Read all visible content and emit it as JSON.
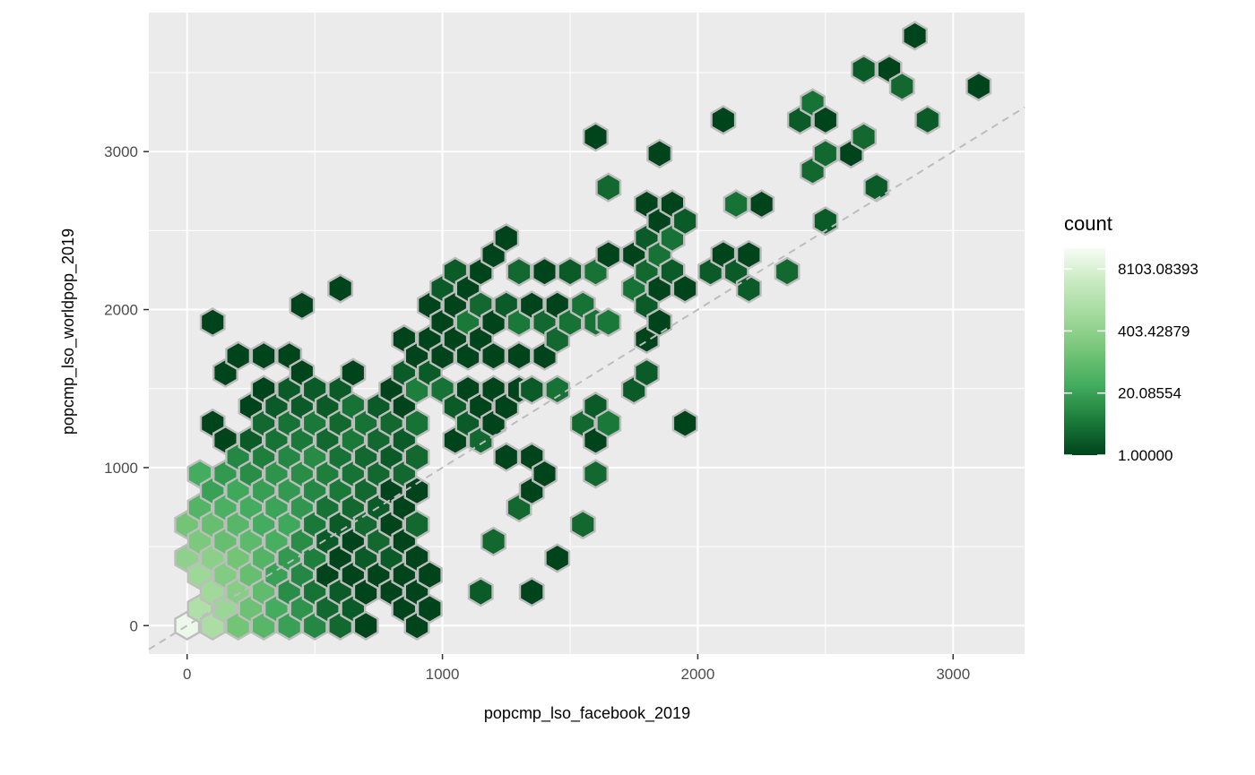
{
  "chart_data": {
    "type": "hexbin",
    "title": "",
    "xlabel": "popcmp_lso_facebook_2019",
    "ylabel": "popcmp_lso_worldpop_2019",
    "xlim": [
      -150,
      3280
    ],
    "ylim": [
      -180,
      3880
    ],
    "x_ticks": [
      0,
      1000,
      2000,
      3000
    ],
    "y_ticks": [
      0,
      1000,
      2000,
      3000
    ],
    "grid": true,
    "reference_line": {
      "type": "identity",
      "style": "dashed",
      "color": "#bdbdbd"
    },
    "hex_width_data": 100,
    "hex_outline_color": "#bdbdbd",
    "legend": {
      "title": "count",
      "placement": "right",
      "scale": "log",
      "labels": [
        "8103.08393",
        "403.42879",
        "20.08554",
        "1.00000"
      ],
      "label_values": [
        8103.08393,
        403.42879,
        20.08554,
        1.0
      ],
      "min": 1,
      "max": 22026,
      "colors": [
        "#00441b",
        "#1b7b3a",
        "#41ab5d",
        "#74c476",
        "#a1d99b",
        "#c7e9c0",
        "#f7fcf5"
      ]
    },
    "columns": [
      {
        "x": 0,
        "rows": [
          [
            0,
            15000
          ],
          [
            427,
            400
          ],
          [
            638,
            150
          ]
        ]
      },
      {
        "x": 50,
        "rows": [
          [
            107,
            1500
          ],
          [
            320,
            700
          ],
          [
            533,
            200
          ],
          [
            747,
            50
          ],
          [
            960,
            30
          ]
        ]
      },
      {
        "x": 100,
        "rows": [
          [
            0,
            1200
          ],
          [
            213,
            800
          ],
          [
            427,
            350
          ],
          [
            640,
            100
          ],
          [
            853,
            20
          ],
          [
            1280,
            1
          ],
          [
            1920,
            1
          ]
        ]
      },
      {
        "x": 150,
        "rows": [
          [
            107,
            600
          ],
          [
            320,
            250
          ],
          [
            533,
            100
          ],
          [
            747,
            40
          ],
          [
            960,
            15
          ],
          [
            1173,
            1
          ],
          [
            1600,
            1
          ]
        ]
      },
      {
        "x": 200,
        "rows": [
          [
            0,
            150
          ],
          [
            213,
            300
          ],
          [
            427,
            150
          ],
          [
            640,
            60
          ],
          [
            853,
            25
          ],
          [
            1067,
            8
          ],
          [
            1707,
            1
          ]
        ]
      },
      {
        "x": 250,
        "rows": [
          [
            107,
            120
          ],
          [
            320,
            100
          ],
          [
            533,
            70
          ],
          [
            747,
            30
          ],
          [
            960,
            10
          ],
          [
            1173,
            2
          ],
          [
            1387,
            1
          ]
        ]
      },
      {
        "x": 300,
        "rows": [
          [
            0,
            60
          ],
          [
            213,
            80
          ],
          [
            427,
            50
          ],
          [
            640,
            30
          ],
          [
            853,
            18
          ],
          [
            1067,
            6
          ],
          [
            1280,
            3
          ],
          [
            1493,
            1
          ],
          [
            1707,
            1
          ]
        ]
      },
      {
        "x": 350,
        "rows": [
          [
            107,
            30
          ],
          [
            320,
            20
          ],
          [
            533,
            35
          ],
          [
            747,
            22
          ],
          [
            960,
            12
          ],
          [
            1173,
            4
          ],
          [
            1387,
            2
          ]
        ]
      },
      {
        "x": 400,
        "rows": [
          [
            0,
            20
          ],
          [
            213,
            10
          ],
          [
            427,
            15
          ],
          [
            640,
            25
          ],
          [
            853,
            15
          ],
          [
            1067,
            8
          ],
          [
            1280,
            4
          ],
          [
            1493,
            2
          ],
          [
            1707,
            1
          ]
        ]
      },
      {
        "x": 450,
        "rows": [
          [
            107,
            12
          ],
          [
            320,
            8
          ],
          [
            533,
            10
          ],
          [
            747,
            14
          ],
          [
            960,
            10
          ],
          [
            1173,
            5
          ],
          [
            1387,
            2
          ],
          [
            1600,
            1
          ],
          [
            2027,
            1
          ]
        ]
      },
      {
        "x": 500,
        "rows": [
          [
            0,
            8
          ],
          [
            213,
            4
          ],
          [
            427,
            6
          ],
          [
            640,
            5
          ],
          [
            853,
            8
          ],
          [
            1067,
            9
          ],
          [
            1280,
            5
          ],
          [
            1493,
            2
          ]
        ]
      },
      {
        "x": 550,
        "rows": [
          [
            107,
            3
          ],
          [
            320,
            1
          ],
          [
            533,
            2
          ],
          [
            747,
            4
          ],
          [
            960,
            6
          ],
          [
            1173,
            3
          ],
          [
            1387,
            2
          ]
        ]
      },
      {
        "x": 600,
        "rows": [
          [
            0,
            3
          ],
          [
            213,
            2
          ],
          [
            427,
            1
          ],
          [
            640,
            2
          ],
          [
            853,
            5
          ],
          [
            1067,
            4
          ],
          [
            1280,
            3
          ],
          [
            1493,
            2
          ],
          [
            2133,
            1
          ]
        ]
      },
      {
        "x": 650,
        "rows": [
          [
            107,
            2
          ],
          [
            320,
            1
          ],
          [
            533,
            1
          ],
          [
            747,
            3
          ],
          [
            960,
            4
          ],
          [
            1173,
            5
          ],
          [
            1387,
            4
          ],
          [
            1600,
            1
          ]
        ]
      },
      {
        "x": 700,
        "rows": [
          [
            0,
            1
          ],
          [
            213,
            1
          ],
          [
            427,
            2
          ],
          [
            640,
            3
          ],
          [
            853,
            3
          ],
          [
            1067,
            3
          ],
          [
            1280,
            4
          ]
        ]
      },
      {
        "x": 750,
        "rows": [
          [
            320,
            1
          ],
          [
            533,
            3
          ],
          [
            747,
            2
          ],
          [
            960,
            3
          ],
          [
            1173,
            3
          ],
          [
            1387,
            2
          ]
        ]
      },
      {
        "x": 800,
        "rows": [
          [
            213,
            1
          ],
          [
            427,
            2
          ],
          [
            640,
            1
          ],
          [
            853,
            1
          ],
          [
            1067,
            2
          ],
          [
            1280,
            3
          ],
          [
            1493,
            1
          ]
        ]
      },
      {
        "x": 850,
        "rows": [
          [
            107,
            1
          ],
          [
            320,
            1
          ],
          [
            533,
            1
          ],
          [
            747,
            1
          ],
          [
            960,
            3
          ],
          [
            1173,
            2
          ],
          [
            1387,
            1
          ],
          [
            1600,
            2
          ],
          [
            1813,
            1
          ]
        ]
      },
      {
        "x": 900,
        "rows": [
          [
            0,
            1
          ],
          [
            213,
            1
          ],
          [
            427,
            1
          ],
          [
            640,
            3
          ],
          [
            853,
            1
          ],
          [
            1067,
            3
          ],
          [
            1280,
            4
          ],
          [
            1493,
            6
          ],
          [
            1707,
            1
          ]
        ]
      },
      {
        "x": 950,
        "rows": [
          [
            107,
            1
          ],
          [
            320,
            1
          ],
          [
            1600,
            2
          ],
          [
            1813,
            1
          ],
          [
            2027,
            1
          ]
        ]
      },
      {
        "x": 1000,
        "rows": [
          [
            1493,
            4
          ],
          [
            1707,
            1
          ],
          [
            1920,
            1
          ],
          [
            2133,
            2
          ]
        ]
      },
      {
        "x": 1050,
        "rows": [
          [
            1173,
            1
          ],
          [
            1387,
            2
          ],
          [
            1813,
            1
          ],
          [
            2027,
            1
          ],
          [
            2240,
            2
          ]
        ]
      },
      {
        "x": 1100,
        "rows": [
          [
            1280,
            2
          ],
          [
            1493,
            1
          ],
          [
            1707,
            1
          ],
          [
            1920,
            5
          ],
          [
            2133,
            1
          ]
        ]
      },
      {
        "x": 1150,
        "rows": [
          [
            213,
            2
          ],
          [
            1173,
            3
          ],
          [
            1387,
            1
          ],
          [
            1813,
            1
          ],
          [
            2027,
            3
          ],
          [
            2240,
            1
          ]
        ]
      },
      {
        "x": 1200,
        "rows": [
          [
            533,
            3
          ],
          [
            1280,
            1
          ],
          [
            1493,
            1
          ],
          [
            1707,
            1
          ],
          [
            1920,
            1
          ],
          [
            2347,
            1
          ]
        ]
      },
      {
        "x": 1250,
        "rows": [
          [
            1067,
            1
          ],
          [
            1387,
            1
          ],
          [
            2027,
            2
          ],
          [
            2453,
            1
          ]
        ]
      },
      {
        "x": 1300,
        "rows": [
          [
            747,
            3
          ],
          [
            1493,
            1
          ],
          [
            1707,
            1
          ],
          [
            1920,
            5
          ],
          [
            2240,
            3
          ]
        ]
      },
      {
        "x": 1350,
        "rows": [
          [
            213,
            1
          ],
          [
            853,
            1
          ],
          [
            1067,
            1
          ],
          [
            1493,
            2
          ],
          [
            2027,
            1
          ]
        ]
      },
      {
        "x": 1400,
        "rows": [
          [
            960,
            1
          ],
          [
            1707,
            1
          ],
          [
            1920,
            3
          ],
          [
            2240,
            1
          ]
        ]
      },
      {
        "x": 1450,
        "rows": [
          [
            427,
            1
          ],
          [
            1493,
            4
          ],
          [
            1813,
            3
          ],
          [
            2027,
            1
          ]
        ]
      },
      {
        "x": 1500,
        "rows": [
          [
            1920,
            4
          ],
          [
            2240,
            2
          ]
        ]
      },
      {
        "x": 1550,
        "rows": [
          [
            640,
            3
          ],
          [
            1280,
            3
          ],
          [
            2027,
            4
          ]
        ]
      },
      {
        "x": 1600,
        "rows": [
          [
            960,
            3
          ],
          [
            1173,
            1
          ],
          [
            1387,
            2
          ],
          [
            1920,
            4
          ],
          [
            2240,
            4
          ],
          [
            3093,
            1
          ]
        ]
      },
      {
        "x": 1650,
        "rows": [
          [
            1280,
            5
          ],
          [
            1920,
            5
          ],
          [
            2347,
            1
          ],
          [
            2773,
            3
          ]
        ]
      },
      {
        "x": 1750,
        "rows": [
          [
            1493,
            2
          ],
          [
            2133,
            4
          ],
          [
            2347,
            1
          ]
        ]
      },
      {
        "x": 1800,
        "rows": [
          [
            1600,
            2
          ],
          [
            1813,
            1
          ],
          [
            2027,
            2
          ],
          [
            2240,
            3
          ],
          [
            2453,
            2
          ],
          [
            2667,
            1
          ]
        ]
      },
      {
        "x": 1850,
        "rows": [
          [
            1920,
            1
          ],
          [
            2133,
            1
          ],
          [
            2347,
            4
          ],
          [
            2560,
            1
          ],
          [
            2987,
            1
          ]
        ]
      },
      {
        "x": 1900,
        "rows": [
          [
            2240,
            2
          ],
          [
            2453,
            4
          ],
          [
            2667,
            1
          ]
        ]
      },
      {
        "x": 1950,
        "rows": [
          [
            1280,
            1
          ],
          [
            2133,
            1
          ],
          [
            2560,
            2
          ]
        ]
      },
      {
        "x": 2050,
        "rows": [
          [
            2240,
            2
          ]
        ]
      },
      {
        "x": 2100,
        "rows": [
          [
            2347,
            1
          ],
          [
            3200,
            1
          ]
        ]
      },
      {
        "x": 2150,
        "rows": [
          [
            2240,
            2
          ],
          [
            2667,
            4
          ]
        ]
      },
      {
        "x": 2200,
        "rows": [
          [
            2133,
            2
          ],
          [
            2347,
            1
          ]
        ]
      },
      {
        "x": 2250,
        "rows": [
          [
            2667,
            1
          ]
        ]
      },
      {
        "x": 2350,
        "rows": [
          [
            2240,
            3
          ]
        ]
      },
      {
        "x": 2400,
        "rows": [
          [
            3200,
            2
          ]
        ]
      },
      {
        "x": 2450,
        "rows": [
          [
            2880,
            3
          ],
          [
            3307,
            4
          ]
        ]
      },
      {
        "x": 2500,
        "rows": [
          [
            2560,
            2
          ],
          [
            2987,
            3
          ],
          [
            3200,
            1
          ]
        ]
      },
      {
        "x": 2600,
        "rows": [
          [
            2987,
            1
          ]
        ]
      },
      {
        "x": 2650,
        "rows": [
          [
            3093,
            3
          ],
          [
            3520,
            2
          ]
        ]
      },
      {
        "x": 2700,
        "rows": [
          [
            2773,
            2
          ]
        ]
      },
      {
        "x": 2750,
        "rows": [
          [
            3520,
            1
          ]
        ]
      },
      {
        "x": 2800,
        "rows": [
          [
            3413,
            3
          ]
        ]
      },
      {
        "x": 2850,
        "rows": [
          [
            3733,
            1
          ]
        ]
      },
      {
        "x": 2900,
        "rows": [
          [
            3200,
            2
          ]
        ]
      },
      {
        "x": 3100,
        "rows": [
          [
            3413,
            1
          ]
        ]
      }
    ]
  }
}
